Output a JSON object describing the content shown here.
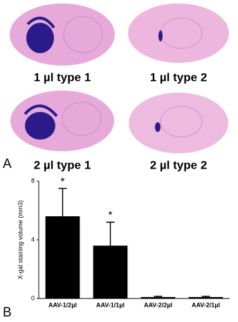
{
  "panels": {
    "a": {
      "label": "A",
      "captions": [
        "1 µl type 1",
        "1 µl type 2",
        "2 µl type 1",
        "2 µl type 2"
      ]
    },
    "b": {
      "label": "B"
    }
  },
  "chart_data": {
    "type": "bar",
    "y_label": "X-gal staining volume (mm3)",
    "categories": [
      "AAV-1/2µl",
      "AAV-1/1µl",
      "AAV-2/2µl",
      "AAV-2/1µl"
    ],
    "values": [
      5.6,
      3.6,
      0.1,
      0.1
    ],
    "errors": [
      1.9,
      1.6,
      0.05,
      0.05
    ],
    "color": "#000000",
    "annotations": [
      "*",
      "*"
    ],
    "ylim": [
      0,
      8
    ],
    "yticks": [
      0,
      4,
      8
    ]
  }
}
